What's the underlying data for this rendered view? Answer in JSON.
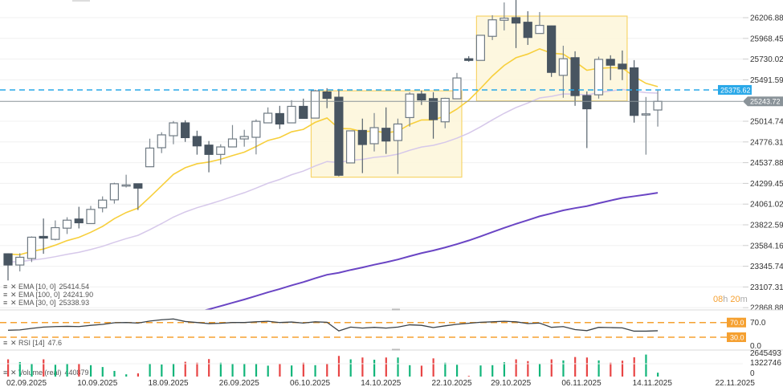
{
  "chart_data": {
    "type": "candlestick",
    "price_axis": {
      "ticks": [
        "26206.88",
        "25968.45",
        "25730.02",
        "25491.59",
        "25014.74",
        "24776.31",
        "24537.88",
        "24299.45",
        "24061.02",
        "23822.59",
        "23584.16",
        "23345.74",
        "23107.31",
        "22868.88"
      ],
      "range": [
        22868.88,
        26206.88
      ]
    },
    "dates": [
      "02.09.2025",
      "03.09.2025",
      "04.09.2025",
      "05.09.2025",
      "08.09.2025",
      "09.09.2025",
      "10.09.2025",
      "11.09.2025",
      "12.09.2025",
      "15.09.2025",
      "16.09.2025",
      "17.09.2025",
      "18.09.2025",
      "19.09.2025",
      "22.09.2025",
      "23.09.2025",
      "24.09.2025",
      "25.09.2025",
      "26.09.2025",
      "29.09.2025",
      "30.09.2025",
      "01.10.2025",
      "02.10.2025",
      "03.10.2025",
      "06.10.2025",
      "07.10.2025",
      "08.10.2025",
      "09.10.2025",
      "10.10.2025",
      "13.10.2025",
      "14.10.2025",
      "15.10.2025",
      "16.10.2025",
      "17.10.2025",
      "20.10.2025",
      "21.10.2025",
      "22.10.2025",
      "23.10.2025",
      "24.10.2025",
      "27.10.2025",
      "28.10.2025",
      "29.10.2025",
      "30.10.2025",
      "31.10.2025",
      "03.11.2025",
      "04.11.2025",
      "05.11.2025",
      "06.11.2025",
      "07.11.2025",
      "10.11.2025",
      "11.11.2025",
      "12.11.2025",
      "13.11.2025",
      "14.11.2025",
      "17.11.2025",
      "18.11.2025"
    ],
    "date_labels": [
      "02.09.2025",
      "10.09.2025",
      "18.09.2025",
      "26.09.2025",
      "06.10.2025",
      "14.10.2025",
      "22.10.2025",
      "29.10.2025",
      "06.11.2025",
      "14.11.2025",
      "22.11.2025"
    ],
    "ohlc": [
      [
        23489,
        23495,
        23182,
        23360
      ],
      [
        23360,
        23495,
        23286,
        23449
      ],
      [
        23435,
        23689,
        23394,
        23680
      ],
      [
        23689,
        23895,
        23489,
        23670
      ],
      [
        23655,
        23873,
        23643,
        23790
      ],
      [
        23784,
        23910,
        23717,
        23876
      ],
      [
        23889,
        24030,
        23781,
        23846
      ],
      [
        23837,
        24040,
        23837,
        24000
      ],
      [
        24018,
        24150,
        23966,
        24107
      ],
      [
        24110,
        24307,
        24067,
        24295
      ],
      [
        24273,
        24399,
        24252,
        24282
      ],
      [
        24295,
        24298,
        23993,
        24245
      ],
      [
        24491,
        24814,
        24491,
        24706
      ],
      [
        24710,
        24888,
        24648,
        24858
      ],
      [
        24848,
        25017,
        24750,
        24996
      ],
      [
        24996,
        25026,
        24777,
        24826
      ],
      [
        24839,
        24906,
        24630,
        24731
      ],
      [
        24740,
        24787,
        24427,
        24633
      ],
      [
        24633,
        24750,
        24519,
        24719
      ],
      [
        24719,
        24971,
        24719,
        24811
      ],
      [
        24811,
        24916,
        24722,
        24839
      ],
      [
        24830,
        25036,
        24633,
        25014
      ],
      [
        24996,
        25174,
        24996,
        25107
      ],
      [
        25103,
        25192,
        24925,
        24983
      ],
      [
        24996,
        25257,
        24996,
        25186
      ],
      [
        25186,
        25275,
        25048,
        25048
      ],
      [
        25051,
        25377,
        25051,
        25365
      ],
      [
        25352,
        25395,
        25165,
        25278
      ],
      [
        25291,
        25386,
        24381,
        24393
      ],
      [
        24535,
        24904,
        24535,
        24904
      ],
      [
        24909,
        25045,
        24418,
        24747
      ],
      [
        24756,
        25109,
        24667,
        24941
      ],
      [
        24934,
        25174,
        24639,
        24787
      ],
      [
        24793,
        25045,
        24408,
        24983
      ],
      [
        25057,
        25349,
        24953,
        25328
      ],
      [
        25328,
        25368,
        25202,
        25260
      ],
      [
        25275,
        25349,
        24814,
        25033
      ],
      [
        25008,
        25285,
        24934,
        25278
      ],
      [
        25273,
        25571,
        25273,
        25513
      ],
      [
        25734,
        25764,
        25700,
        25715
      ],
      [
        25715,
        26004,
        25715,
        26004
      ],
      [
        25992,
        26235,
        25949,
        26182
      ],
      [
        26177,
        26382,
        26060,
        26201
      ],
      [
        26207,
        26410,
        25857,
        26145
      ],
      [
        26154,
        26281,
        25893,
        25979
      ],
      [
        26025,
        26272,
        26025,
        26118
      ],
      [
        26112,
        26115,
        25525,
        25577
      ],
      [
        25543,
        25884,
        25285,
        25734
      ],
      [
        25746,
        25820,
        25192,
        25310
      ],
      [
        25310,
        25358,
        24706,
        25158
      ],
      [
        25319,
        25758,
        25275,
        25727
      ],
      [
        25727,
        25774,
        25488,
        25660
      ],
      [
        25672,
        25829,
        25488,
        25617
      ],
      [
        25629,
        25718,
        24999,
        25082
      ],
      [
        25100,
        25294,
        24630,
        25100
      ],
      [
        25144,
        25368,
        24953,
        25243.72
      ]
    ],
    "volume": [
      1958000,
      1649000,
      1416000,
      1958000,
      1339000,
      1416000,
      1471000,
      1293000,
      1084000,
      642000,
      255000,
      364000,
      1494000,
      1370000,
      1416000,
      1680000,
      1571000,
      1989000,
      1571000,
      1494000,
      1494000,
      1416000,
      1238000,
      1416000,
      1262000,
      1571000,
      1293000,
      1471000,
      2345000,
      1958000,
      2167000,
      1912000,
      2167000,
      2167000,
      1293000,
      1238000,
      2067000,
      1571000,
      1339000,
      77000,
      1262000,
      1293000,
      1625000,
      1958000,
      1757000,
      1416000,
      1958000,
      1834000,
      2221000,
      2167000,
      1834000,
      1571000,
      1803000,
      2190000,
      2500000,
      440879
    ],
    "volume_axis": {
      "ticks": [
        "2645493",
        "1322746",
        "0"
      ],
      "max": 2645493
    },
    "rsi": [
      49,
      50,
      54,
      57.6,
      59,
      59.7,
      59,
      62.4,
      65,
      69.3,
      70,
      68.6,
      74,
      77.6,
      79.7,
      72.8,
      70,
      67,
      68,
      70,
      70,
      72,
      73.4,
      70,
      71.4,
      68.6,
      72,
      70.7,
      47.2,
      57.6,
      54.8,
      56.9,
      54.8,
      57.6,
      63.8,
      62.4,
      56.2,
      61,
      65.2,
      68,
      70.7,
      72,
      73.4,
      72,
      67.2,
      68.6,
      56.9,
      59,
      50.7,
      47.9,
      56.9,
      56.2,
      55.5,
      46.5,
      46.5,
      47.6
    ],
    "rsi_axis": {
      "ticks": [
        "70.0",
        "0.0"
      ],
      "levels": [
        "70.0",
        "30.0"
      ]
    },
    "ema_series": [
      {
        "name": "EMA [10, 0]",
        "value": "25414.54",
        "color": "#f7cf3c"
      },
      {
        "name": "EMA [100, 0]",
        "value": "24241.90",
        "color": "#6a45c4"
      },
      {
        "name": "EMA [30, 0]",
        "value": "25338.93",
        "color": "#d6c8ea"
      }
    ],
    "rsi_legend": {
      "name": "RSI [14]",
      "value": "47.6"
    },
    "volume_legend": {
      "name": "Volume  (real)",
      "value": "440879"
    },
    "zones": [
      {
        "from": "08.10.2025",
        "to": "24.10.2025",
        "top": 25365,
        "bottom": 24371
      },
      {
        "from": "28.10.2025",
        "to": "13.11.2025",
        "top": 26225,
        "bottom": 25248
      }
    ],
    "alert_line": {
      "price": "25375.62",
      "color": "#29a8e8"
    },
    "last_price": {
      "price": "25243.72",
      "color": "#8a9399"
    },
    "countdown": {
      "hours": "08",
      "h": "h",
      "minutes": "20",
      "m": "m"
    },
    "colors": {
      "up_volume": "#12b57a",
      "down_volume": "#e84545",
      "bear_body": "#485561",
      "rsi_level": "#f5a030",
      "zone_fill": "#fdf6dc",
      "zone_stroke": "#f7d46a"
    }
  }
}
